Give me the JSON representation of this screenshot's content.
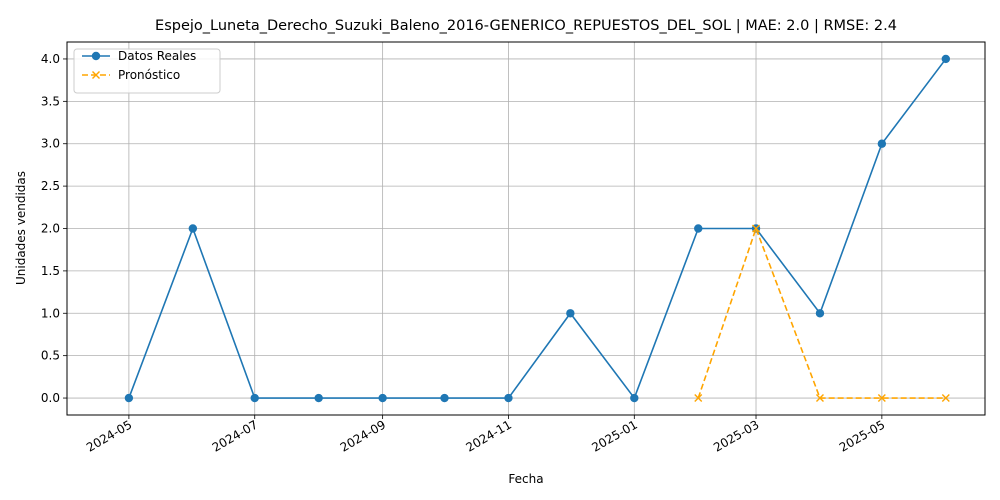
{
  "chart_data": {
    "type": "line",
    "title": "Espejo_Luneta_Derecho_Suzuki_Baleno_2016-GENERICO_REPUESTOS_DEL_SOL | MAE: 2.0 | RMSE: 2.4",
    "xlabel": "Fecha",
    "ylabel": "Unidades vendidas",
    "xlim": [
      "2024-04-01",
      "2025-06-20"
    ],
    "ylim": [
      -0.2,
      4.2
    ],
    "x_ticks": [
      "2024-05",
      "2024-07",
      "2024-09",
      "2024-11",
      "2025-01",
      "2025-03",
      "2025-05"
    ],
    "y_ticks": [
      "0.0",
      "0.5",
      "1.0",
      "1.5",
      "2.0",
      "2.5",
      "3.0",
      "3.5",
      "4.0"
    ],
    "grid": true,
    "legend_position": "top-left",
    "series": [
      {
        "name": "Datos Reales",
        "color": "#1f77b4",
        "marker": "circle",
        "linestyle": "solid",
        "x": [
          "2024-05-01",
          "2024-06-01",
          "2024-07-01",
          "2024-08-01",
          "2024-09-01",
          "2024-10-01",
          "2024-11-01",
          "2024-12-01",
          "2025-01-01",
          "2025-02-01",
          "2025-03-01",
          "2025-04-01",
          "2025-05-01",
          "2025-06-01"
        ],
        "values": [
          0,
          2,
          0,
          0,
          0,
          0,
          0,
          1,
          0,
          2,
          2,
          1,
          3,
          4
        ]
      },
      {
        "name": "Pronóstico",
        "color": "#ffa500",
        "marker": "x",
        "linestyle": "dashed",
        "x": [
          "2025-02-01",
          "2025-03-01",
          "2025-04-01",
          "2025-05-01",
          "2025-06-01"
        ],
        "values": [
          0,
          2,
          0,
          0,
          0
        ]
      }
    ]
  }
}
